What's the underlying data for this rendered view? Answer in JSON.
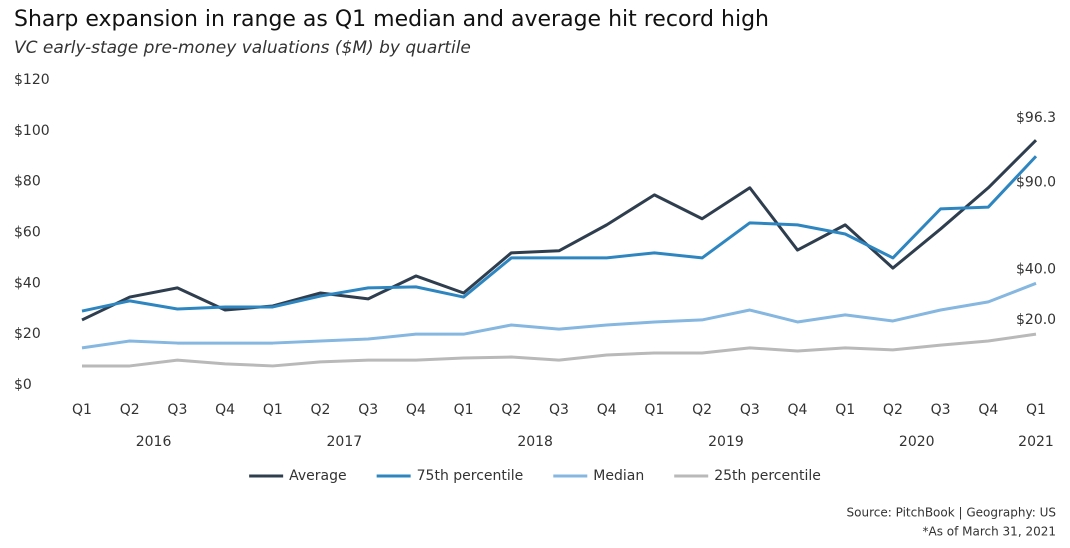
{
  "chart_data": {
    "type": "line",
    "title": "Sharp expansion in range as Q1 median and average hit record high",
    "subtitle": "VC early-stage pre-money valuations ($M) by quartile",
    "categories": [
      "Q1",
      "Q2",
      "Q3",
      "Q4",
      "Q1",
      "Q2",
      "Q3",
      "Q4",
      "Q1",
      "Q2",
      "Q3",
      "Q4",
      "Q1",
      "Q2",
      "Q3",
      "Q4",
      "Q1",
      "Q2",
      "Q3",
      "Q4",
      "Q1"
    ],
    "x_groups": [
      "2016",
      null,
      null,
      null,
      "2017",
      null,
      null,
      null,
      "2018",
      null,
      null,
      null,
      "2019",
      null,
      null,
      null,
      "2020",
      null,
      null,
      null,
      "2021"
    ],
    "ylim": [
      0,
      120
    ],
    "yticks": [
      {
        "value": 0,
        "label": "$0"
      },
      {
        "value": 20,
        "label": "$20"
      },
      {
        "value": 40,
        "label": "$40"
      },
      {
        "value": 60,
        "label": "$60"
      },
      {
        "value": 80,
        "label": "$80"
      },
      {
        "value": 100,
        "label": "$100"
      },
      {
        "value": 120,
        "label": "$120"
      }
    ],
    "grid": false,
    "legend": "bottom",
    "series": [
      {
        "name": "Average",
        "color": "#2f3e4e",
        "values": [
          25.6,
          34.6,
          38.2,
          29.5,
          31.1,
          36.2,
          33.9,
          42.9,
          36.2,
          52.0,
          52.8,
          63.0,
          74.8,
          65.4,
          77.6,
          53.1,
          63.0,
          46.0,
          61.4,
          77.6,
          96.3
        ],
        "value_labels": [
          null,
          null,
          null,
          null,
          null,
          null,
          null,
          null,
          null,
          null,
          null,
          null,
          null,
          null,
          null,
          null,
          null,
          null,
          null,
          null,
          "$96.3"
        ]
      },
      {
        "name": "75th percentile",
        "color": "#2e86c1",
        "values": [
          29.1,
          33.1,
          29.9,
          30.7,
          30.7,
          35.0,
          38.2,
          38.6,
          34.6,
          50.0,
          50.0,
          50.0,
          52.0,
          50.0,
          63.8,
          63.0,
          59.4,
          50.0,
          69.3,
          70.0,
          90.0
        ],
        "value_labels": [
          null,
          null,
          null,
          null,
          null,
          null,
          null,
          null,
          null,
          null,
          null,
          null,
          null,
          null,
          null,
          null,
          null,
          null,
          null,
          null,
          "$90.0"
        ]
      },
      {
        "name": "Median",
        "color": "#85b7e0",
        "values": [
          14.6,
          17.3,
          16.5,
          16.5,
          16.5,
          17.3,
          18.1,
          20.0,
          20.0,
          23.6,
          22.0,
          23.6,
          24.8,
          25.6,
          29.5,
          24.8,
          27.6,
          25.2,
          29.5,
          32.7,
          40.0
        ],
        "value_labels": [
          null,
          null,
          null,
          null,
          null,
          null,
          null,
          null,
          null,
          null,
          null,
          null,
          null,
          null,
          null,
          null,
          null,
          null,
          null,
          null,
          "$40.0"
        ]
      },
      {
        "name": "25th percentile",
        "color": "#b9b9b9",
        "values": [
          7.5,
          7.5,
          9.8,
          8.3,
          7.5,
          9.1,
          9.8,
          9.8,
          10.6,
          11.0,
          9.8,
          11.8,
          12.6,
          12.6,
          14.6,
          13.4,
          14.6,
          13.8,
          15.7,
          17.3,
          20.0
        ],
        "value_labels": [
          null,
          null,
          null,
          null,
          null,
          null,
          null,
          null,
          null,
          null,
          null,
          null,
          null,
          null,
          null,
          null,
          null,
          null,
          null,
          null,
          "$20.0"
        ]
      }
    ],
    "source_note": "Source: PitchBook | Geography: US",
    "footnote": "*As of March 31, 2021"
  }
}
